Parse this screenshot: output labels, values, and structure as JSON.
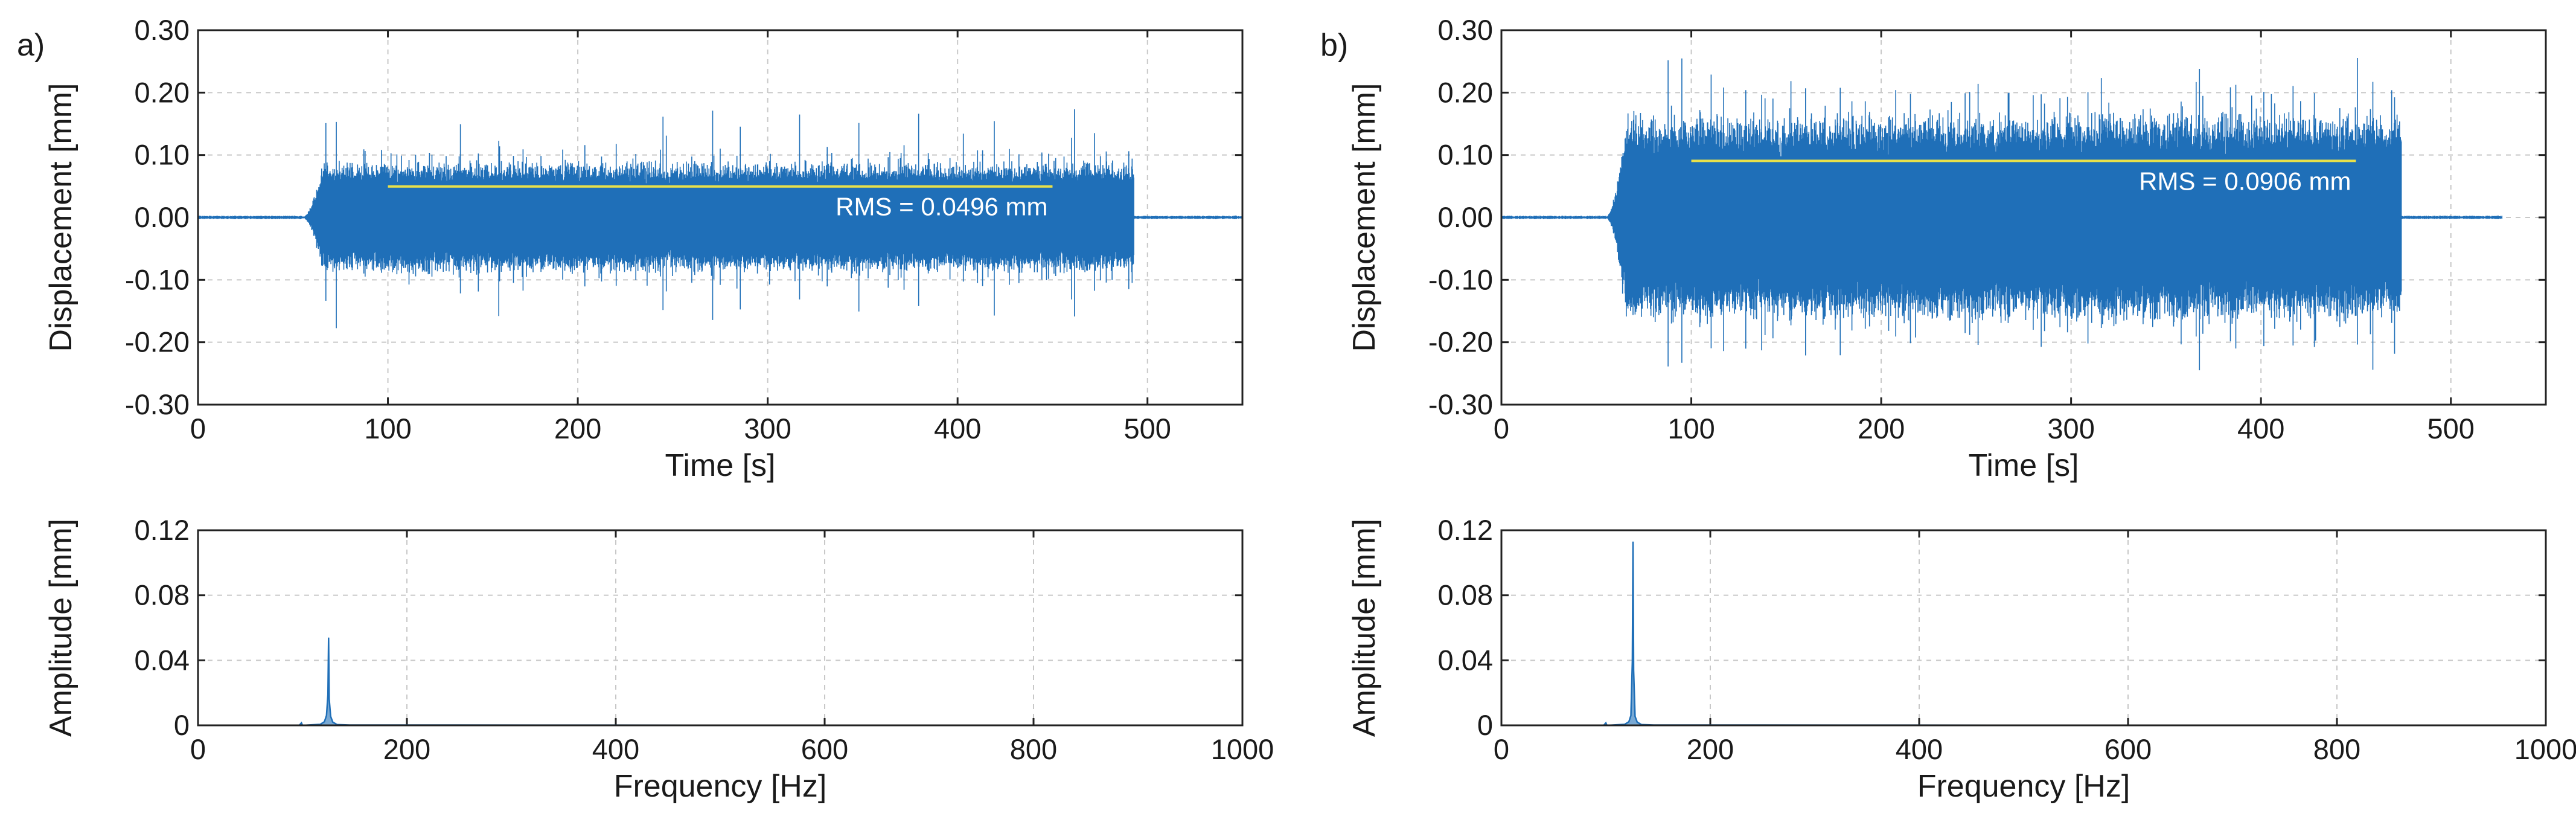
{
  "colors": {
    "signal": "#1f6fb8",
    "rms_line": "#e8e04a",
    "rms_text": "#ffffff",
    "grid": "#c8c8c8",
    "axis": "#222222"
  },
  "chart_data": [
    {
      "id": "a-time",
      "panel": "a)",
      "type": "line",
      "xlabel": "Time [s]",
      "ylabel": "Displacement [mm]",
      "xlim": [
        0,
        550
      ],
      "ylim": [
        -0.3,
        0.3
      ],
      "xticks": [
        0,
        100,
        200,
        300,
        400,
        500
      ],
      "xtick_labels": [
        "0",
        "100",
        "200",
        "300",
        "400",
        "500"
      ],
      "yticks": [
        -0.3,
        -0.2,
        -0.1,
        0,
        0.1,
        0.2,
        0.3
      ],
      "ytick_labels": [
        "-0.30",
        "-0.20",
        "-0.10",
        "0.00",
        "0.10",
        "0.20",
        "0.30"
      ],
      "grid": true,
      "signal": {
        "t_start": 0,
        "t_end": 550,
        "ramp_start": 55,
        "active_start": 65,
        "active_end": 492,
        "typical_amplitude": 0.085,
        "peak_amplitude": 0.185,
        "noise_amplitude": 0.002
      },
      "rms_line": {
        "x_start": 100,
        "x_end": 450,
        "y": 0.0496
      },
      "annotation": "RMS = 0.0496 mm"
    },
    {
      "id": "a-freq",
      "type": "line",
      "xlabel": "Frequency [Hz]",
      "ylabel": "Amplitude [mm]",
      "xlim": [
        0,
        1000
      ],
      "ylim": [
        0,
        0.12
      ],
      "xticks": [
        0,
        200,
        400,
        600,
        800,
        1000
      ],
      "xtick_labels": [
        "0",
        "200",
        "400",
        "600",
        "800",
        "1000"
      ],
      "yticks": [
        0,
        0.04,
        0.08,
        0.12
      ],
      "ytick_labels": [
        "0",
        "0.04",
        "0.08",
        "0.12"
      ],
      "grid": true,
      "peak": {
        "frequency": 125,
        "amplitude": 0.054
      }
    },
    {
      "id": "b-time",
      "panel": "b)",
      "type": "line",
      "xlabel": "Time [s]",
      "ylabel": "Displacement [mm]",
      "xlim": [
        0,
        550
      ],
      "ylim": [
        -0.3,
        0.3
      ],
      "xticks": [
        0,
        100,
        200,
        300,
        400,
        500
      ],
      "xtick_labels": [
        "0",
        "100",
        "200",
        "300",
        "400",
        "500"
      ],
      "yticks": [
        -0.3,
        -0.2,
        -0.1,
        0,
        0.1,
        0.2,
        0.3
      ],
      "ytick_labels": [
        "-0.30",
        "-0.20",
        "-0.10",
        "0.00",
        "0.10",
        "0.20",
        "0.30"
      ],
      "grid": true,
      "signal": {
        "t_start": 0,
        "t_end": 527,
        "ramp_start": 55,
        "active_start": 65,
        "active_end": 473,
        "typical_amplitude": 0.16,
        "peak_amplitude": 0.28,
        "noise_amplitude": 0.002
      },
      "rms_line": {
        "x_start": 100,
        "x_end": 450,
        "y": 0.0906
      },
      "annotation": "RMS = 0.0906 mm"
    },
    {
      "id": "b-freq",
      "type": "line",
      "xlabel": "Frequency [Hz]",
      "ylabel": "Amplitude [mm]",
      "xlim": [
        0,
        1000
      ],
      "ylim": [
        0,
        0.12
      ],
      "xticks": [
        0,
        200,
        400,
        600,
        800,
        1000
      ],
      "xtick_labels": [
        "0",
        "200",
        "400",
        "600",
        "800",
        "1000"
      ],
      "yticks": [
        0,
        0.04,
        0.08,
        0.12
      ],
      "ytick_labels": [
        "0",
        "0.04",
        "0.08",
        "0.12"
      ],
      "grid": true,
      "peak": {
        "frequency": 126,
        "amplitude": 0.113
      }
    }
  ]
}
